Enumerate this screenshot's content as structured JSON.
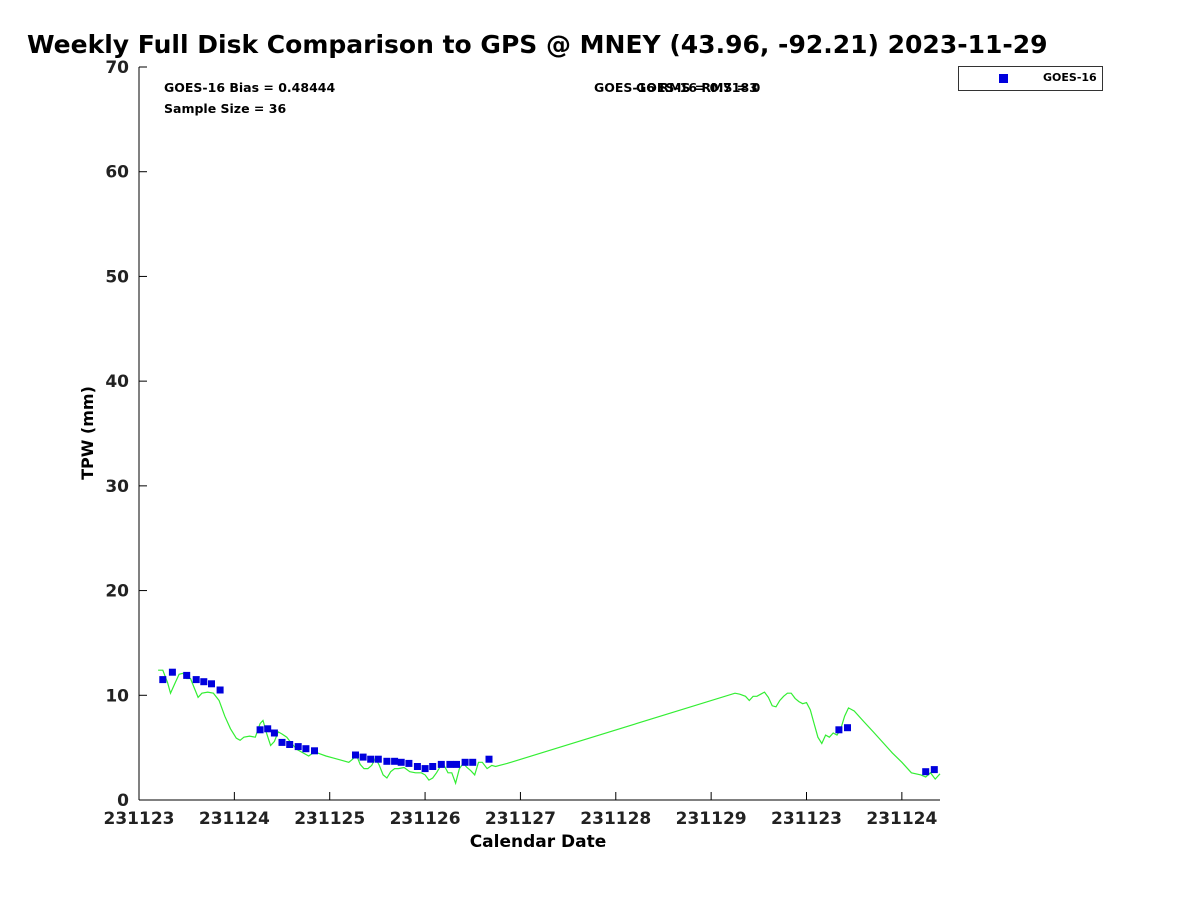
{
  "chart_data": {
    "type": "scatter",
    "title": "Weekly Full Disk Comparison to GPS @ MNEY (43.96, -92.21) 2023-11-29",
    "xlabel": "Calendar Date",
    "ylabel": "TPW (mm)",
    "ylim": [
      0,
      70
    ],
    "xlim": [
      0,
      8.4
    ],
    "yticks": [
      0,
      10,
      20,
      30,
      40,
      50,
      60,
      70
    ],
    "xticks": [
      0,
      1,
      2,
      3,
      4,
      5,
      6,
      7,
      8
    ],
    "xticklabels": [
      "231123",
      "231124",
      "231125",
      "231126",
      "231127",
      "231128",
      "231129",
      "231123",
      "231124"
    ],
    "legend": {
      "position": "top-right",
      "entries": [
        "GOES-16"
      ]
    },
    "annotations": {
      "bias": "GOES-16 Bias = 0.48444",
      "sample": "Sample Size = 36",
      "rms": "GOES-16 RMS = 0.7183",
      "overlap": "GOES-16 RMS = 0"
    },
    "series": [
      {
        "name": "GOES-16",
        "kind": "markers",
        "color": "#0000dd",
        "x": [
          0.25,
          0.35,
          0.5,
          0.6,
          0.68,
          0.76,
          0.85,
          1.27,
          1.35,
          1.42,
          1.5,
          1.58,
          1.67,
          1.75,
          1.84,
          2.27,
          2.35,
          2.43,
          2.51,
          2.6,
          2.68,
          2.75,
          2.83,
          2.92,
          3.0,
          3.08,
          3.17,
          3.26,
          3.33,
          3.42,
          3.5,
          3.67,
          7.34,
          7.43,
          8.25,
          8.34
        ],
        "y": [
          11.5,
          12.2,
          11.9,
          11.5,
          11.3,
          11.1,
          10.5,
          6.7,
          6.8,
          6.4,
          5.5,
          5.3,
          5.1,
          4.9,
          4.7,
          4.3,
          4.1,
          3.9,
          3.9,
          3.7,
          3.7,
          3.6,
          3.5,
          3.2,
          3.0,
          3.2,
          3.4,
          3.4,
          3.4,
          3.6,
          3.6,
          3.9,
          6.7,
          6.9,
          2.7,
          2.9
        ]
      },
      {
        "name": "GPS",
        "kind": "line",
        "color": "#33ee33",
        "x": [
          0.2,
          0.25,
          0.3,
          0.33,
          0.38,
          0.42,
          0.46,
          0.5,
          0.54,
          0.58,
          0.62,
          0.66,
          0.72,
          0.78,
          0.84,
          0.9,
          0.96,
          1.02,
          1.06,
          1.1,
          1.16,
          1.22,
          1.27,
          1.3,
          1.34,
          1.38,
          1.42,
          1.46,
          1.5,
          1.55,
          1.6,
          1.66,
          1.72,
          1.78,
          1.84,
          1.9,
          1.96,
          2.04,
          2.12,
          2.2,
          2.24,
          2.28,
          2.32,
          2.36,
          2.4,
          2.44,
          2.48,
          2.52,
          2.56,
          2.6,
          2.64,
          2.68,
          2.72,
          2.78,
          2.84,
          2.9,
          2.96,
          3.0,
          3.04,
          3.08,
          3.12,
          3.16,
          3.2,
          3.24,
          3.28,
          3.32,
          3.36,
          3.4,
          3.44,
          3.48,
          3.52,
          3.56,
          3.6,
          3.65,
          3.7,
          3.74,
          3.78,
          3.82,
          3.86,
          3.9,
          6.25,
          6.3,
          6.36,
          6.4,
          6.44,
          6.48,
          6.52,
          6.56,
          6.6,
          6.64,
          6.68,
          6.72,
          6.76,
          6.8,
          6.84,
          6.88,
          6.92,
          6.96,
          7.0,
          7.04,
          7.08,
          7.12,
          7.16,
          7.2,
          7.24,
          7.28,
          7.32,
          7.36,
          7.4,
          7.44,
          7.5,
          7.6,
          7.7,
          7.8,
          7.9,
          8.0,
          8.1,
          8.2,
          8.25,
          8.3,
          8.35,
          8.4
        ],
        "y": [
          12.4,
          12.4,
          11.2,
          10.2,
          11.2,
          12.0,
          12.1,
          11.6,
          11.6,
          10.7,
          9.8,
          10.2,
          10.3,
          10.2,
          9.5,
          8.0,
          6.8,
          5.9,
          5.7,
          6.0,
          6.1,
          6.0,
          7.3,
          7.6,
          6.3,
          5.2,
          5.6,
          6.5,
          6.3,
          6.0,
          5.4,
          4.8,
          4.5,
          4.2,
          4.6,
          4.4,
          4.2,
          4.0,
          3.8,
          3.6,
          3.9,
          4.3,
          3.4,
          3.0,
          3.0,
          3.3,
          4.0,
          3.3,
          2.4,
          2.1,
          2.7,
          3.0,
          3.0,
          3.1,
          2.7,
          2.6,
          2.6,
          2.4,
          1.9,
          2.1,
          2.6,
          3.2,
          3.3,
          2.6,
          2.6,
          1.6,
          3.0,
          3.5,
          3.1,
          2.8,
          2.4,
          3.6,
          3.6,
          3.0,
          3.3,
          3.2,
          3.3,
          3.4,
          3.5,
          3.6,
          10.2,
          10.1,
          9.9,
          9.5,
          9.9,
          9.9,
          10.1,
          10.3,
          9.8,
          9.0,
          8.9,
          9.5,
          9.9,
          10.2,
          10.2,
          9.7,
          9.4,
          9.2,
          9.3,
          8.6,
          7.3,
          6.0,
          5.4,
          6.2,
          6.0,
          6.4,
          6.2,
          6.8,
          8.0,
          8.8,
          8.5,
          7.5,
          6.5,
          5.5,
          4.5,
          3.6,
          2.6,
          2.4,
          2.2,
          2.6,
          2.0,
          2.5
        ]
      }
    ]
  }
}
